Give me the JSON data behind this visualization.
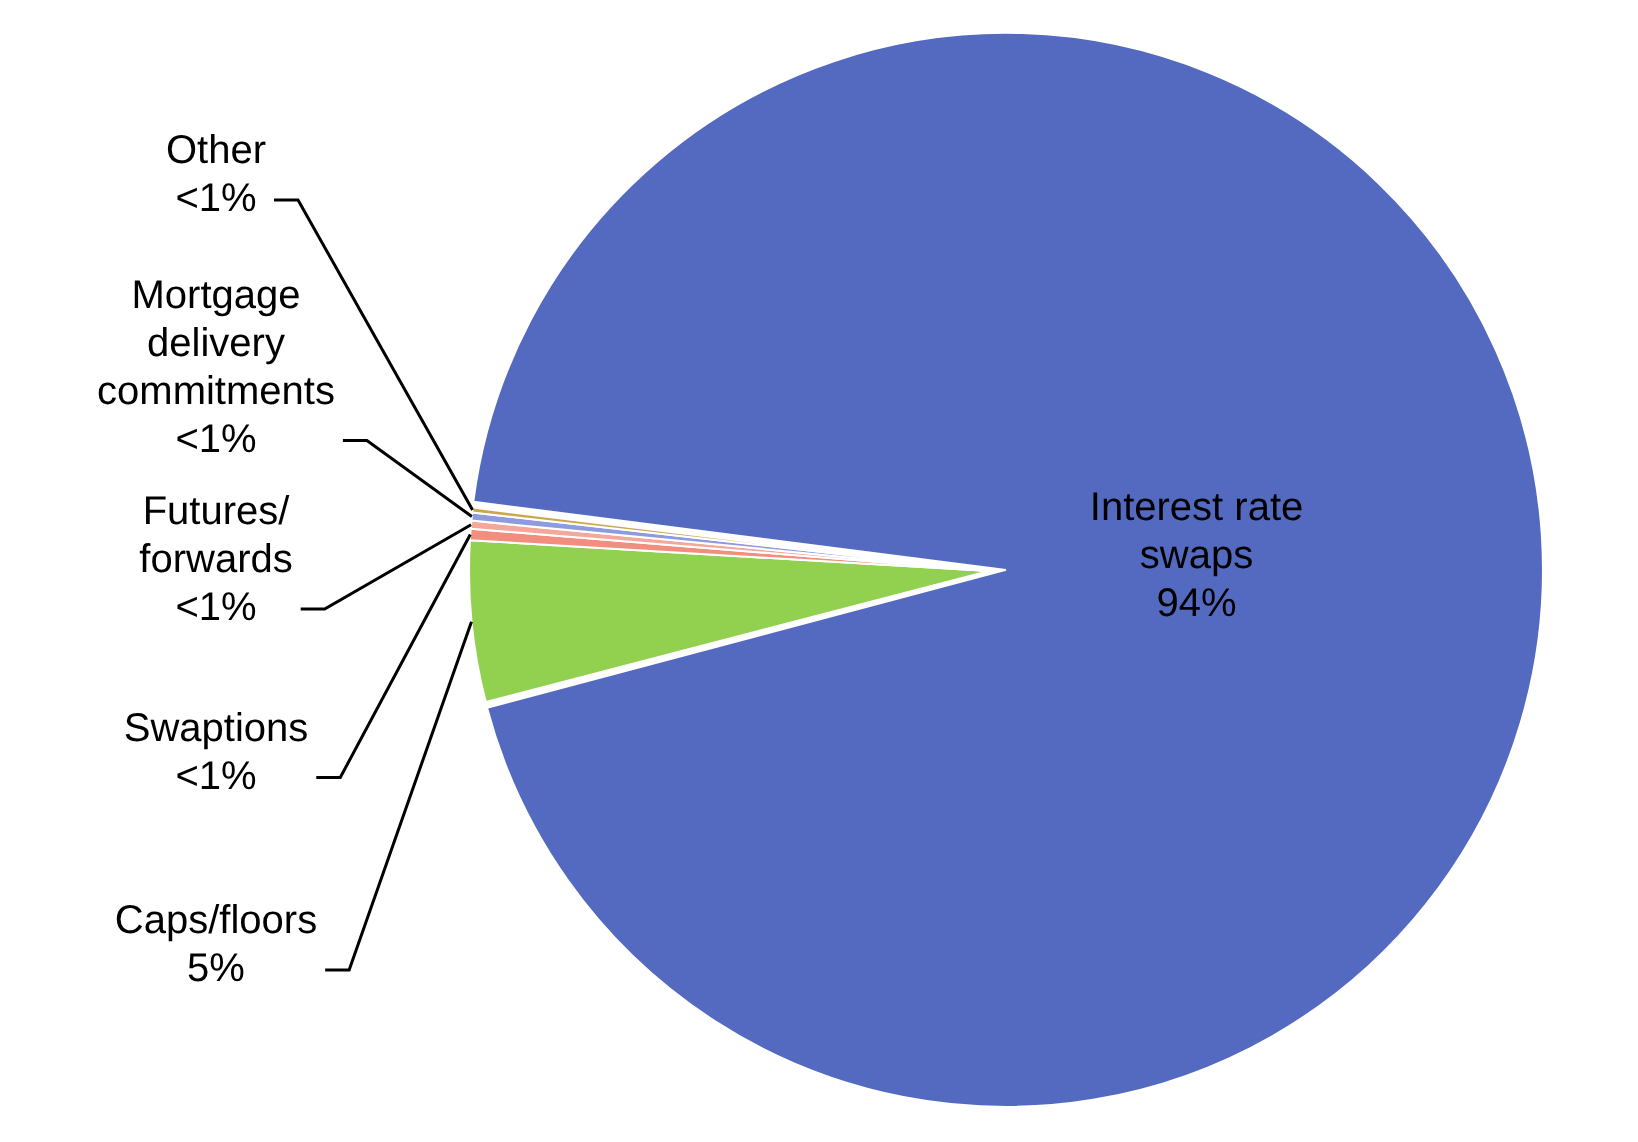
{
  "chart_data": {
    "type": "pie",
    "categories": [
      "Interest rate swaps",
      "Caps/floors",
      "Swaptions",
      "Futures/forwards",
      "Mortgage delivery commitments",
      "Other"
    ],
    "values": [
      94,
      5,
      0.35,
      0.25,
      0.25,
      0.15
    ],
    "colors": [
      "#5469c0",
      "#92d050",
      "#f28e7e",
      "#f4a89b",
      "#8e9be0",
      "#c9a74a"
    ],
    "value_labels": [
      "94%",
      "5%",
      "<1%",
      "<1%",
      "<1%",
      "<1%"
    ],
    "legend": false
  }
}
